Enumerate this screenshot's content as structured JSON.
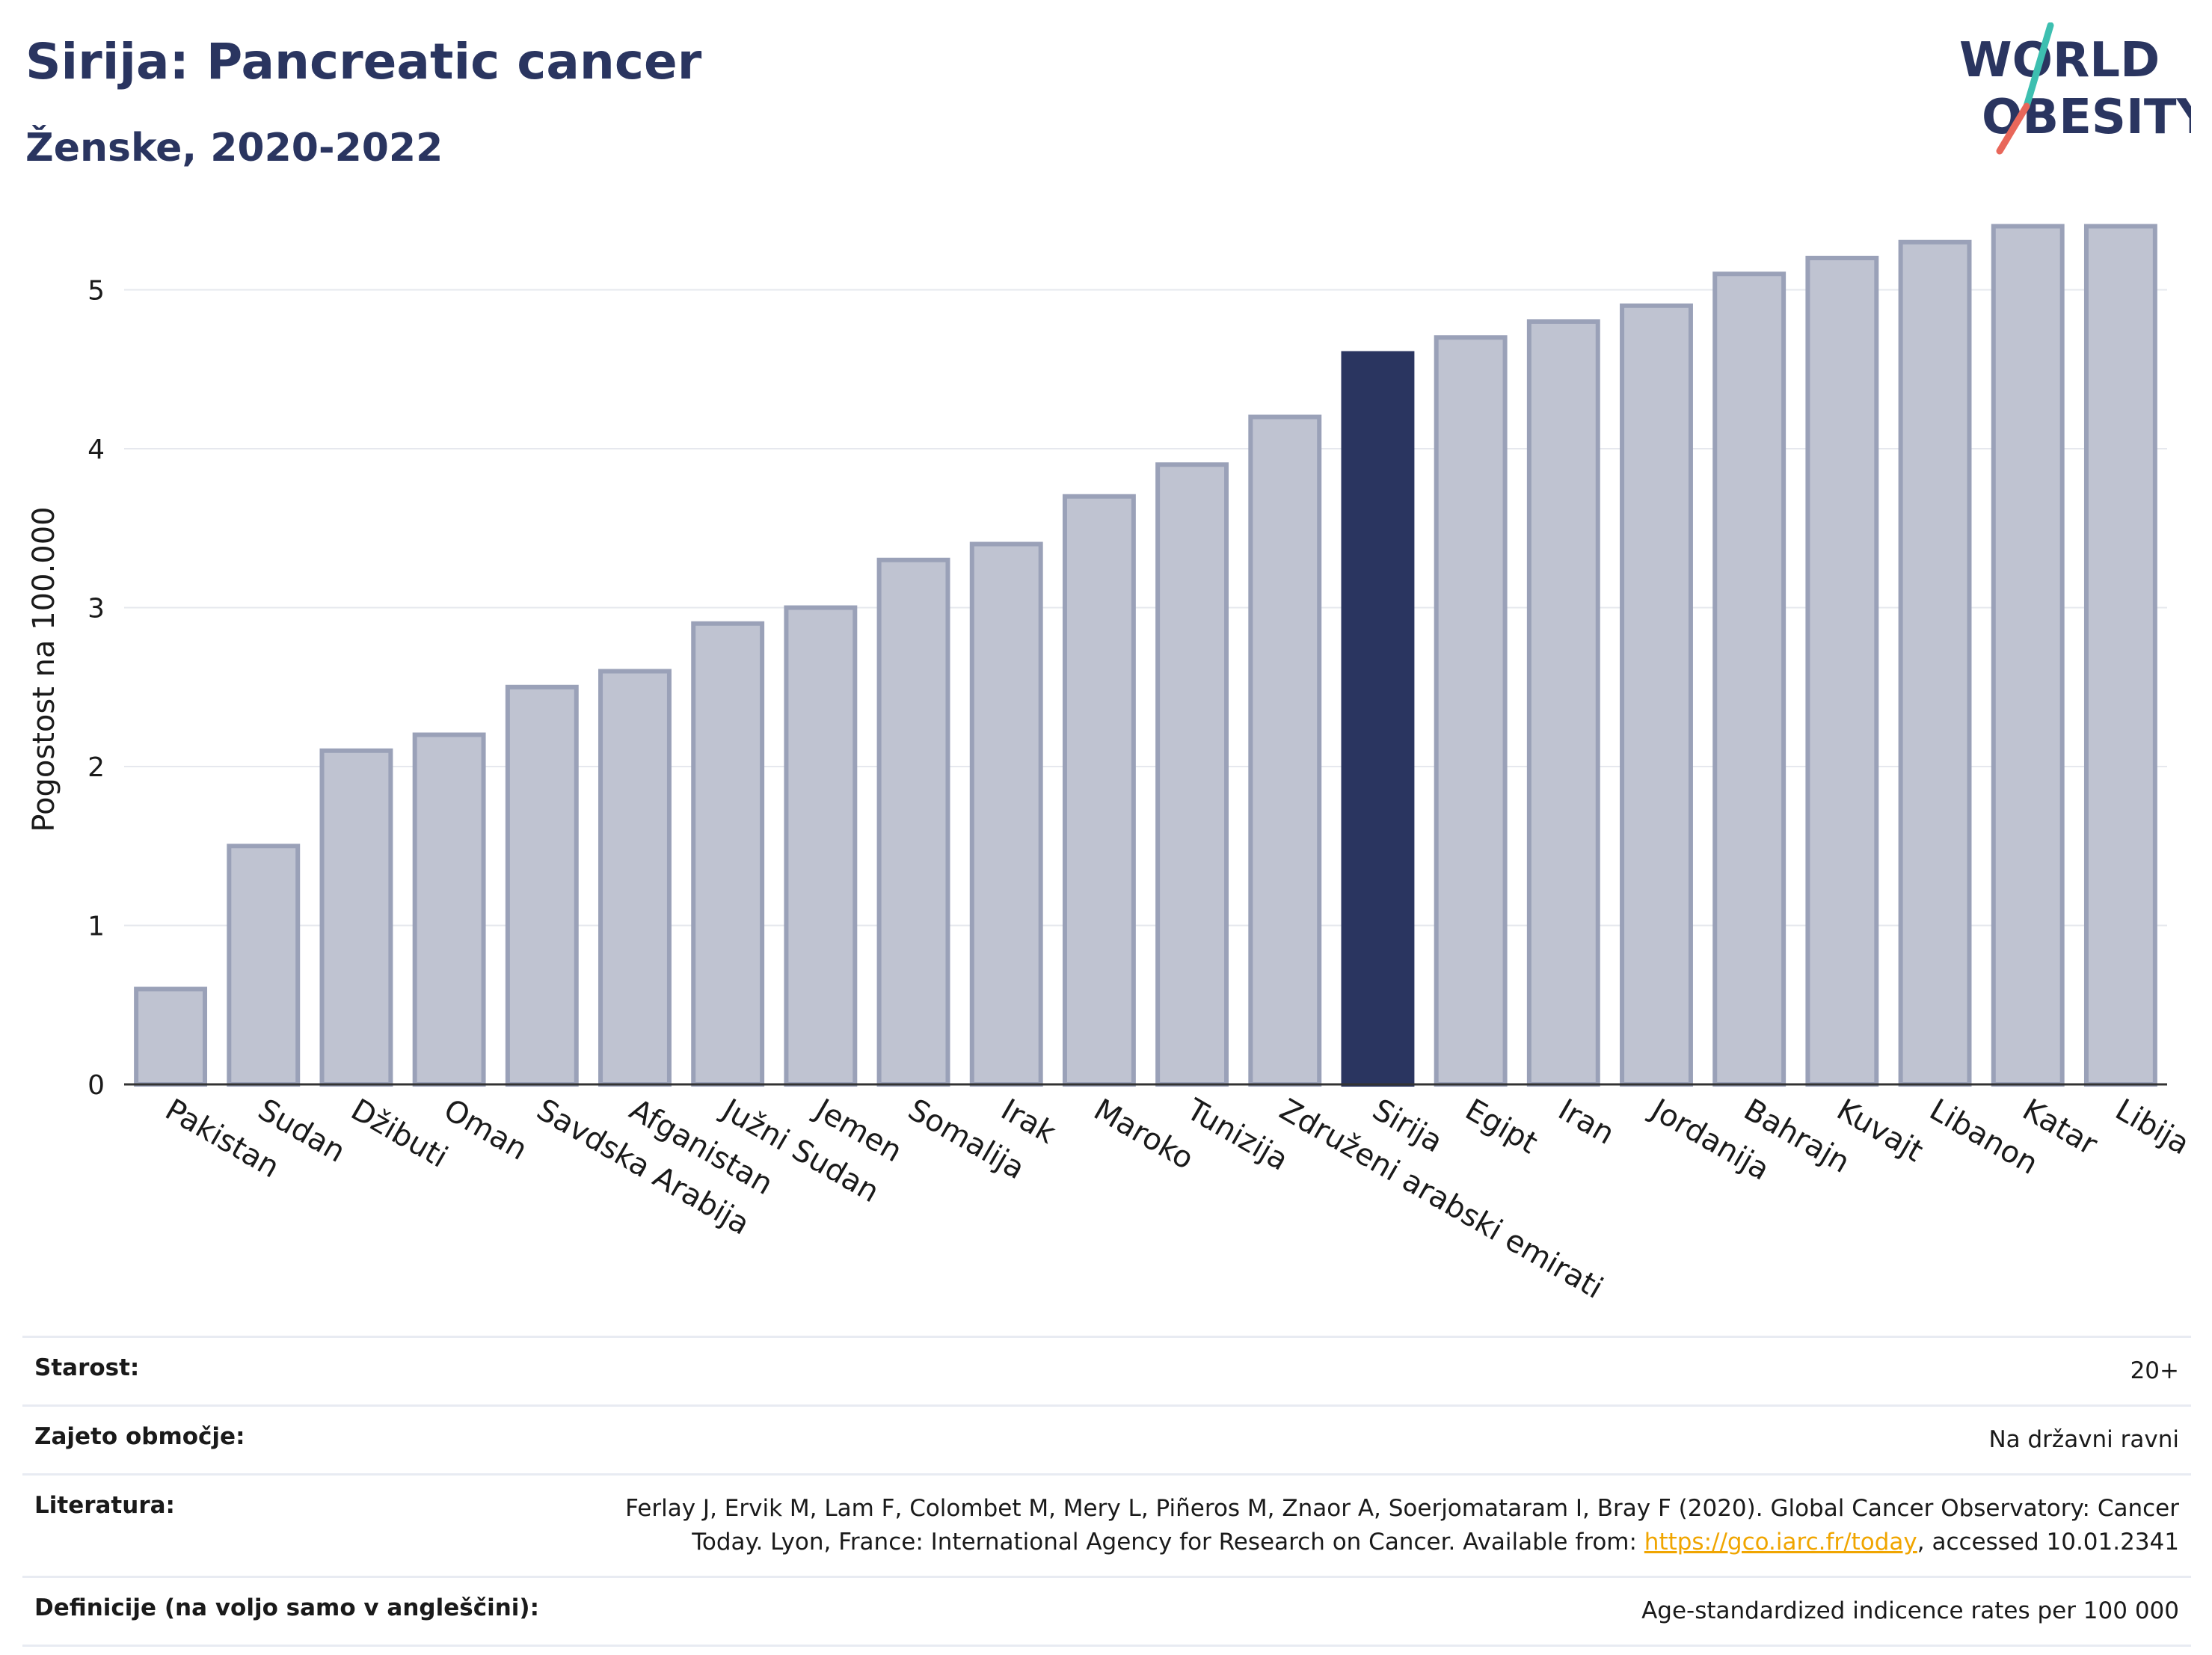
{
  "header": {
    "title": "Sirija: Pancreatic cancer",
    "subtitle": "Ženske, 2020-2022"
  },
  "logo": {
    "line1": "WORLD",
    "line2": "OBESITY",
    "slash_colors": [
      "#3dbfb0",
      "#e8675a"
    ]
  },
  "colors": {
    "bar_default": "#bfc3d1",
    "bar_border": "#9aa1b8",
    "bar_highlight": "#2a3560",
    "text_dark": "#2a3560",
    "link": "#f0a500"
  },
  "chart_data": {
    "type": "bar",
    "ylabel": "Pogostost na 100.000",
    "xlabel": "",
    "ylim": [
      0,
      5.6
    ],
    "yticks": [
      0,
      1,
      2,
      3,
      4,
      5
    ],
    "grid": true,
    "highlight": "Sirija",
    "categories": [
      "Pakistan",
      "Sudan",
      "Džibuti",
      "Oman",
      "Savdska Arabija",
      "Afganistan",
      "Južni Sudan",
      "Jemen",
      "Somalija",
      "Irak",
      "Maroko",
      "Tunizija",
      "Združeni arabski emirati",
      "Sirija",
      "Egipt",
      "Iran",
      "Jordanija",
      "Bahrajn",
      "Kuvajt",
      "Libanon",
      "Katar",
      "Libija"
    ],
    "values": [
      0.6,
      1.5,
      2.1,
      2.2,
      2.5,
      2.6,
      2.9,
      3.0,
      3.3,
      3.4,
      3.7,
      3.9,
      4.2,
      4.6,
      4.7,
      4.8,
      4.9,
      5.1,
      5.2,
      5.3,
      5.4,
      5.4
    ]
  },
  "meta": [
    {
      "key": "Starost:",
      "value": "20+"
    },
    {
      "key": "Zajeto območje:",
      "value": "Na državni ravni"
    },
    {
      "key": "Literatura:",
      "value_line1": "Ferlay J, Ervik M, Lam F, Colombet M, Mery L, Piñeros M, Znaor A, Soerjomataram I, Bray F (2020). Global Cancer Observatory: Cancer",
      "value_line2_pre": "Today. Lyon, France: International Agency for Research on Cancer. Available from: ",
      "link": "https://gco.iarc.fr/today",
      "value_line2_post": ", accessed 10.01.2341"
    },
    {
      "key": "Definicije (na voljo samo v angleščini):",
      "value": "Age-standardized indicence rates per 100 000"
    }
  ]
}
